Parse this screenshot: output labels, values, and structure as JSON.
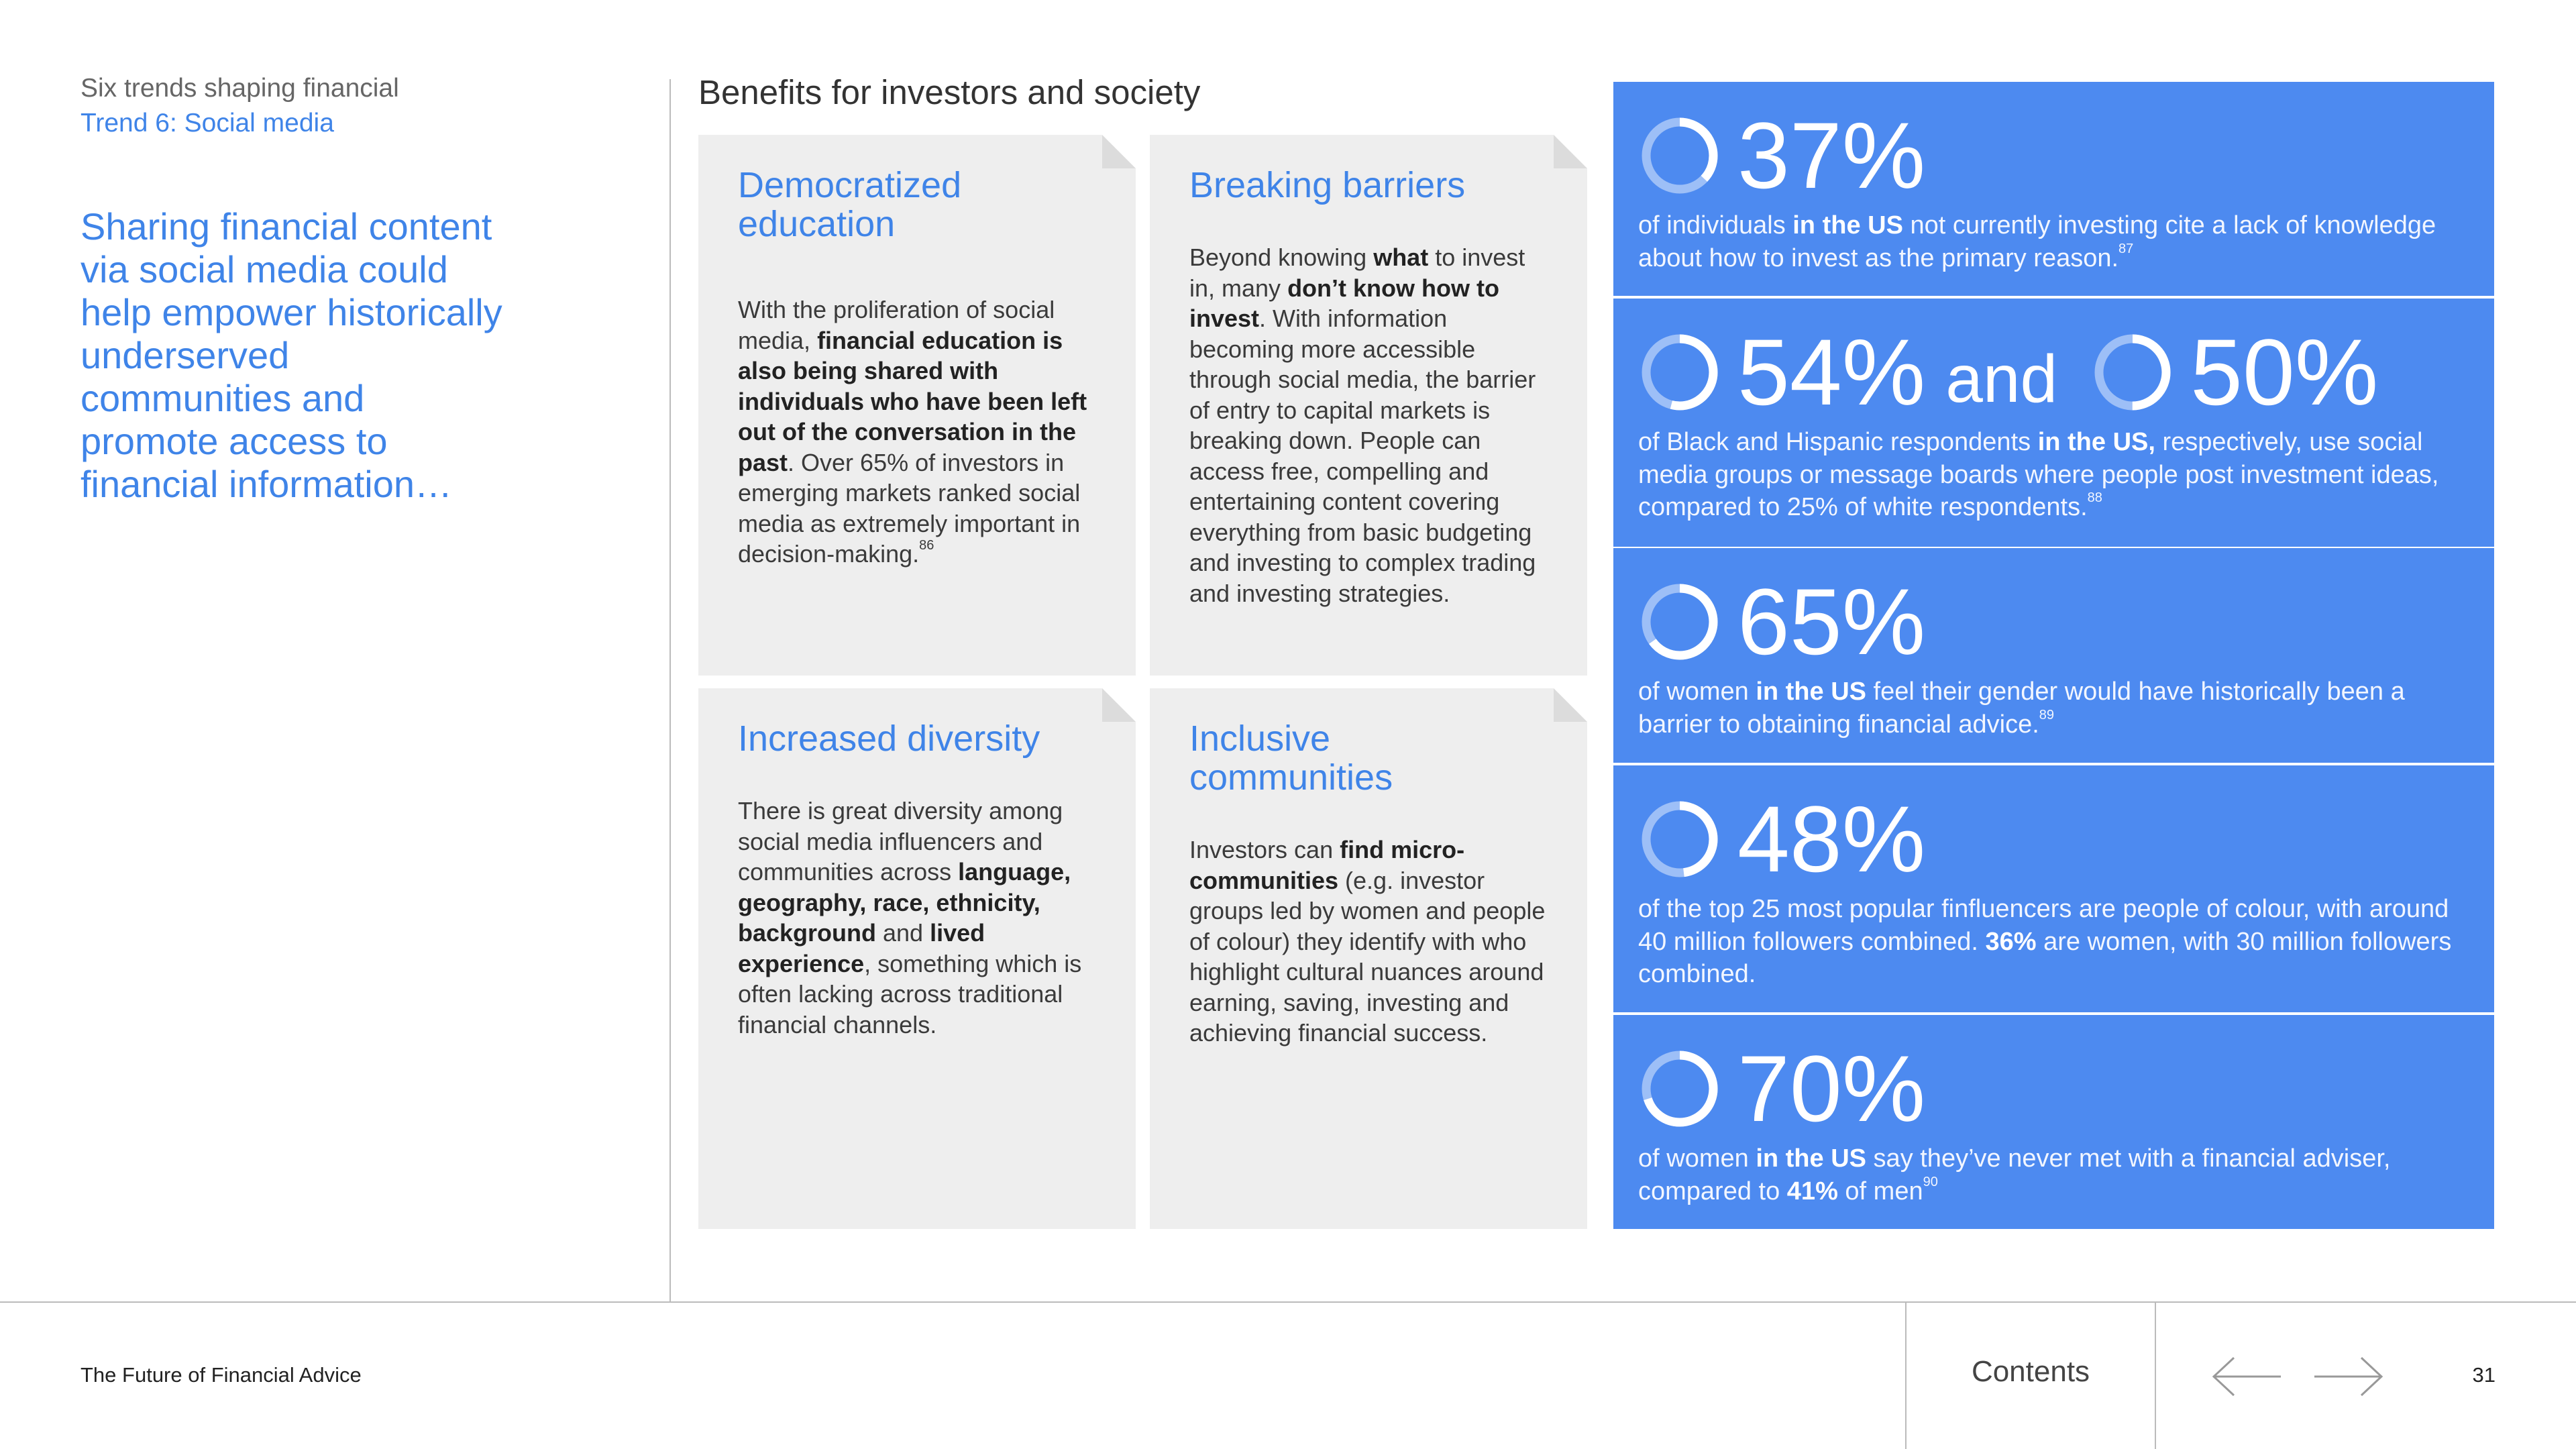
{
  "header": {
    "section": "Six trends shaping financial",
    "subsection": "Trend 6: Social media"
  },
  "intro": "Sharing financial content via social media could help empower historically underserved communities and promote access to financial information…",
  "heading": "Benefits for investors and society",
  "cards": [
    {
      "title": "Democratized education",
      "body": [
        {
          "t": "With the proliferation of social media, "
        },
        {
          "t": "financial education is also being shared with individuals who have been left out of the conversation in the past",
          "b": true
        },
        {
          "t": ". Over 65% of investors in emerging markets ranked social media as extremely important in decision-making."
        },
        {
          "t": "86",
          "sup": true
        }
      ]
    },
    {
      "title": "Breaking barriers",
      "body": [
        {
          "t": "Beyond knowing "
        },
        {
          "t": "what",
          "b": true
        },
        {
          "t": " to invest in, many "
        },
        {
          "t": "don’t know how to invest",
          "b": true
        },
        {
          "t": ". With information becoming more accessible through social media, the barrier of entry to capital markets is breaking down. People can access free, compelling and entertaining content covering everything from basic budgeting and investing to complex trading and investing strategies."
        }
      ]
    },
    {
      "title": "Increased diversity",
      "body": [
        {
          "t": "There is great diversity among social media influencers and communities across "
        },
        {
          "t": "language, geography, race, ethnicity, background",
          "b": true
        },
        {
          "t": " and "
        },
        {
          "t": "lived experience",
          "b": true
        },
        {
          "t": ", something which is often lacking across traditional financial channels."
        }
      ]
    },
    {
      "title": "Inclusive communities",
      "body": [
        {
          "t": "Investors can "
        },
        {
          "t": "find micro-communities",
          "b": true
        },
        {
          "t": " (e.g. investor groups led by women and people of colour) they identify with who highlight cultural nuances around earning, saving, investing and achieving financial success."
        }
      ]
    }
  ],
  "stats": [
    {
      "figures": [
        {
          "value": 37,
          "label": "37%"
        }
      ],
      "text": [
        {
          "t": "of individuals "
        },
        {
          "t": "in the US",
          "b": true
        },
        {
          "t": " not currently investing cite a lack of knowledge about how to invest as the primary reason."
        },
        {
          "t": "87",
          "sup": true
        }
      ]
    },
    {
      "figures": [
        {
          "value": 54,
          "label": "54%"
        },
        {
          "value": 50,
          "label": "50%"
        }
      ],
      "joiner": "and",
      "text": [
        {
          "t": "of Black and Hispanic respondents "
        },
        {
          "t": "in the US,",
          "b": true
        },
        {
          "t": " respectively, use social media groups or message boards where people post investment ideas, compared to 25% of white respondents."
        },
        {
          "t": "88",
          "sup": true
        }
      ]
    },
    {
      "figures": [
        {
          "value": 65,
          "label": "65%"
        }
      ],
      "text": [
        {
          "t": "of women "
        },
        {
          "t": "in the US",
          "b": true
        },
        {
          "t": " feel their gender would have historically been a barrier to obtaining financial advice."
        },
        {
          "t": "89",
          "sup": true
        }
      ]
    },
    {
      "figures": [
        {
          "value": 48,
          "label": "48%"
        }
      ],
      "text": [
        {
          "t": "of the top 25 most popular finfluencers are people of colour, with around 40 million followers combined. "
        },
        {
          "t": "36%",
          "b": true
        },
        {
          "t": " are women, with 30 million followers combined."
        }
      ]
    },
    {
      "figures": [
        {
          "value": 70,
          "label": "70%"
        }
      ],
      "text": [
        {
          "t": "of women "
        },
        {
          "t": "in the US",
          "b": true
        },
        {
          "t": " say they’ve never met with a financial adviser, compared to "
        },
        {
          "t": "41%",
          "b": true
        },
        {
          "t": " of men"
        },
        {
          "t": "90",
          "sup": true
        }
      ]
    }
  ],
  "footer": {
    "publication": "The Future of Financial Advice",
    "contents": "Contents",
    "page": "31"
  }
}
